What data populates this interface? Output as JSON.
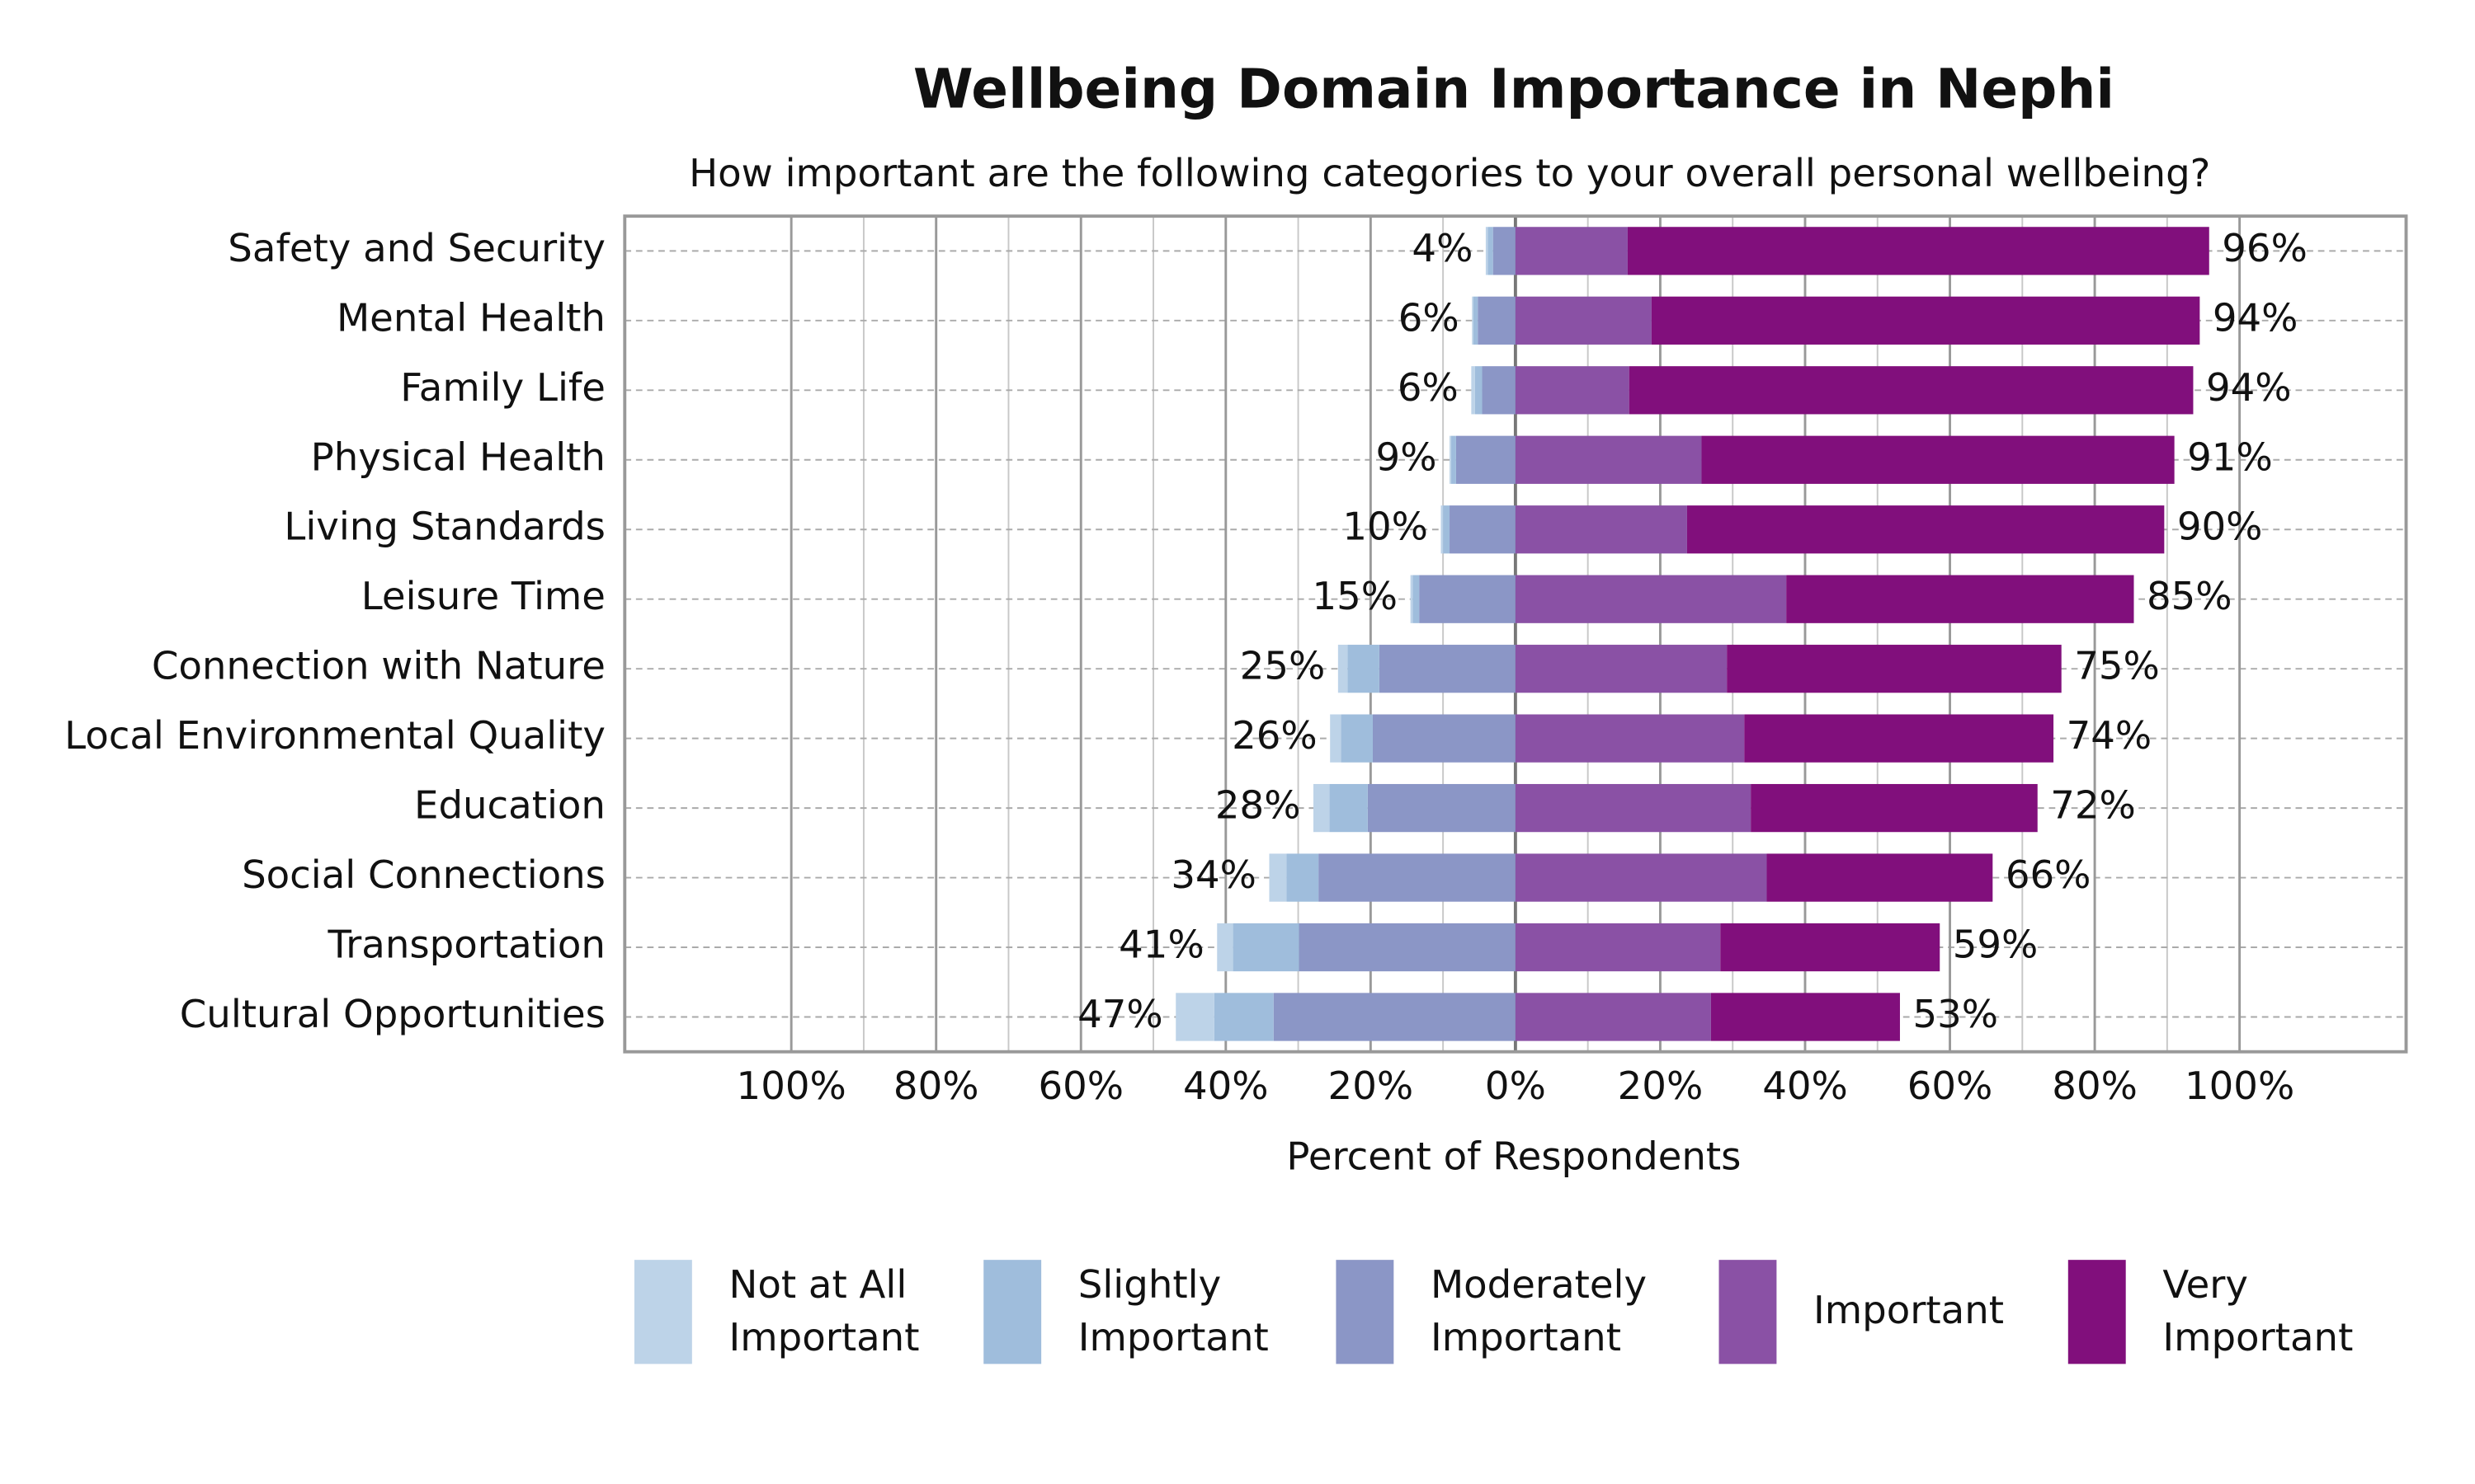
{
  "chart_data": {
    "type": "diverging-bar",
    "title": "Wellbeing Domain Importance in Nephi",
    "subtitle": "How important are the following categories to your overall personal wellbeing?",
    "x_label": "Percent of Respondents",
    "categories": [
      "Safety and Security",
      "Mental Health",
      "Family Life",
      "Physical Health",
      "Living Standards",
      "Leisure Time",
      "Connection with Nature",
      "Local Environmental Quality",
      "Education",
      "Social Connections",
      "Transportation",
      "Cultural Opportunities"
    ],
    "series": [
      {
        "name": "Not at All Important",
        "color": "#bdd3e8",
        "values": [
          -0.3,
          -0.2,
          -0.5,
          -0.2,
          -0.3,
          -0.3,
          -1.3,
          -1.5,
          -2.2,
          -2.4,
          -2.2,
          -5.3
        ]
      },
      {
        "name": "Slightly Important",
        "color": "#9fbddc",
        "values": [
          -0.7,
          -0.6,
          -1.0,
          -0.7,
          -0.9,
          -0.9,
          -4.4,
          -4.4,
          -5.3,
          -4.4,
          -9.1,
          -8.2
        ]
      },
      {
        "name": "Moderately Important",
        "color": "#8b96c6",
        "values": [
          -3.1,
          -5.2,
          -4.6,
          -8.2,
          -9.1,
          -13.3,
          -18.8,
          -19.7,
          -20.4,
          -27.2,
          -29.9,
          -33.4
        ]
      },
      {
        "name": "Important",
        "color": "#8a51a5",
        "values": [
          15.5,
          18.8,
          15.7,
          25.7,
          23.7,
          37.4,
          29.2,
          31.6,
          32.5,
          34.7,
          28.3,
          27.0
        ]
      },
      {
        "name": "Very Important",
        "color": "#810f7c",
        "values": [
          80.3,
          75.7,
          77.9,
          65.3,
          65.9,
          48.0,
          46.2,
          42.7,
          39.6,
          31.2,
          30.3,
          26.1
        ]
      }
    ],
    "negative_totals": {
      "values": [
        4,
        6,
        6,
        9,
        10,
        15,
        25,
        26,
        28,
        34,
        41,
        47
      ],
      "value_labels": [
        "4%",
        "6%",
        "6%",
        "9%",
        "10%",
        "15%",
        "25%",
        "26%",
        "28%",
        "34%",
        "41%",
        "47%"
      ]
    },
    "positive_totals": {
      "values": [
        96,
        94,
        94,
        91,
        90,
        85,
        75,
        74,
        72,
        66,
        59,
        53
      ],
      "value_labels": [
        "96%",
        "94%",
        "94%",
        "91%",
        "90%",
        "85%",
        "75%",
        "74%",
        "72%",
        "66%",
        "59%",
        "53%"
      ]
    },
    "xlim": [
      -123,
      123
    ],
    "xticks": [
      {
        "value": -100,
        "label": "100%"
      },
      {
        "value": -80,
        "label": "80%"
      },
      {
        "value": -60,
        "label": "60%"
      },
      {
        "value": -40,
        "label": "40%"
      },
      {
        "value": -20,
        "label": "20%"
      },
      {
        "value": 0,
        "label": "0%"
      },
      {
        "value": 20,
        "label": "20%"
      },
      {
        "value": 40,
        "label": "40%"
      },
      {
        "value": 60,
        "label": "60%"
      },
      {
        "value": 80,
        "label": "80%"
      },
      {
        "value": 100,
        "label": "100%"
      }
    ],
    "minor_xticks": [
      -90,
      -70,
      -50,
      -30,
      -10,
      10,
      30,
      50,
      70,
      90
    ],
    "grid": true
  }
}
